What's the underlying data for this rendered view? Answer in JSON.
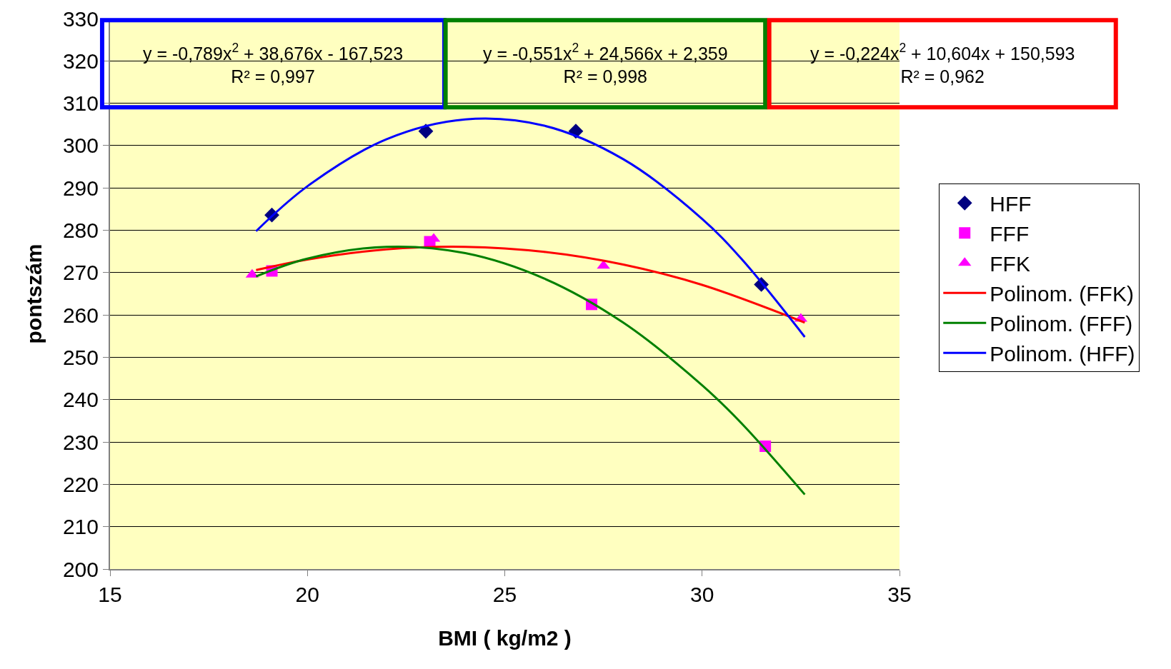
{
  "chart_data": {
    "type": "scatter",
    "xlabel": "BMI ( kg/m2 )",
    "ylabel": "pontszám",
    "xlim": [
      15,
      35
    ],
    "xticks": [
      15,
      20,
      25,
      30,
      35
    ],
    "ylim": [
      200,
      330
    ],
    "yticks": [
      200,
      210,
      220,
      230,
      240,
      250,
      260,
      270,
      280,
      290,
      300,
      310,
      320,
      330
    ],
    "grid": "y",
    "legend": "right",
    "annotations": [
      "y = -0,789x$^{2}$ + 38,676x - 167,523\nR² = 0,997",
      "y = -0,551x$^{2}$ + 24,566x + 2,359\nR² = 0,998",
      "y = -0,224x$^{2}$ + 10,604x + 150,593\nR² = 0,962"
    ],
    "series": [
      {
        "name": "HFF",
        "marker": "diamond",
        "color": "#000080",
        "x": [
          19.1,
          23.0,
          26.8,
          31.5
        ],
        "values": [
          283.6,
          303.4,
          303.4,
          267.2
        ]
      },
      {
        "name": "FFF",
        "marker": "square",
        "color": "#ff00ff",
        "x": [
          19.1,
          23.1,
          27.2,
          31.6
        ],
        "values": [
          270.4,
          277.3,
          262.5,
          229.0
        ]
      },
      {
        "name": "FFK",
        "marker": "triangle",
        "color": "#ff00ff",
        "x": [
          18.6,
          23.2,
          27.5,
          32.5
        ],
        "values": [
          269.5,
          278.0,
          271.6,
          259.1
        ]
      },
      {
        "name": "Polinom. (FFK)",
        "type": "line",
        "marker": "none",
        "color": "#ff0000",
        "x": [
          18.7,
          20,
          22,
          24,
          26,
          28,
          30,
          32.6
        ],
        "values": [
          270.6,
          273.1,
          275.5,
          276.1,
          274.9,
          271.9,
          267.1,
          258.2
        ]
      },
      {
        "name": "Polinom. (FFF)",
        "type": "line",
        "marker": "none",
        "color": "#008000",
        "x": [
          18.7,
          20,
          22,
          24,
          26,
          28,
          30,
          31,
          32.6
        ],
        "values": [
          269.1,
          273.3,
          276.1,
          274.6,
          268.6,
          258.2,
          243.4,
          234.4,
          217.6
        ]
      },
      {
        "name": "Polinom. (HFF)",
        "type": "line",
        "marker": "none",
        "color": "#0000ff",
        "x": [
          18.7,
          20,
          22,
          24,
          26,
          28,
          30,
          31,
          32.6
        ],
        "values": [
          279.8,
          290.4,
          301.5,
          306.2,
          304.7,
          296.8,
          282.7,
          273.2,
          254.8
        ]
      }
    ]
  }
}
